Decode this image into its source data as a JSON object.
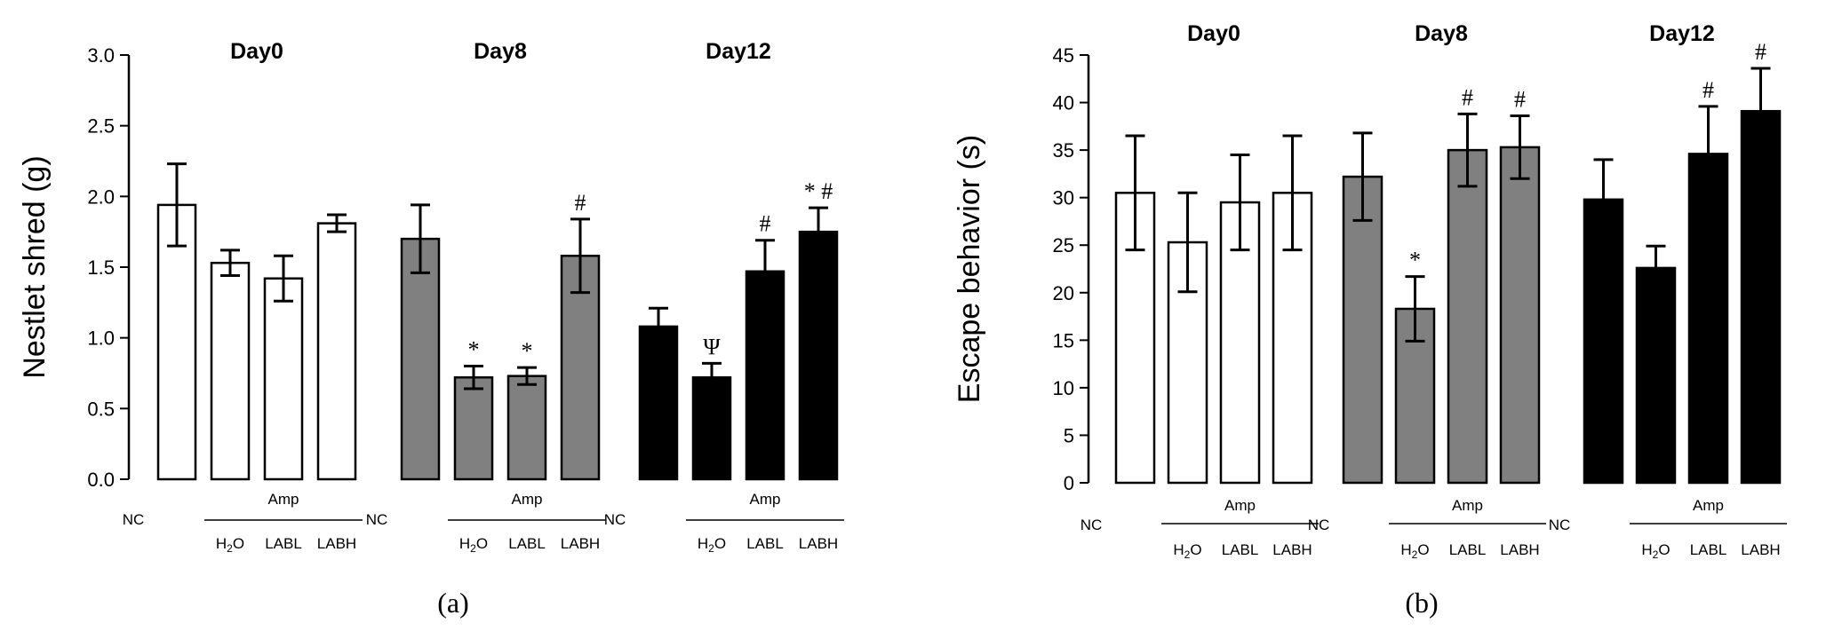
{
  "chart_data": [
    {
      "type": "bar",
      "panel_label": "(a)",
      "ylabel": "Nestlet shred (g)",
      "ylim": [
        0,
        3.0
      ],
      "yticks": [
        "0.0",
        "0.5",
        "1.0",
        "1.5",
        "2.0",
        "2.5",
        "3.0"
      ],
      "group_titles": [
        "Day0",
        "Day8",
        "Day12"
      ],
      "group_fill": [
        "#ffffff",
        "#808080",
        "#000000"
      ],
      "category_labels": {
        "nc": "NC",
        "amp": "Amp",
        "h2o_main": "H",
        "h2o_sub": "2",
        "h2o_tail": "O",
        "labl": "LABL",
        "labh": "LABH"
      },
      "groups": [
        {
          "bars": [
            {
              "category": "NC",
              "value": 1.94,
              "error": 0.29,
              "annotation": ""
            },
            {
              "category": "H2O",
              "value": 1.53,
              "error": 0.09,
              "annotation": ""
            },
            {
              "category": "LABL",
              "value": 1.42,
              "error": 0.16,
              "annotation": ""
            },
            {
              "category": "LABH",
              "value": 1.81,
              "error": 0.06,
              "annotation": ""
            }
          ]
        },
        {
          "bars": [
            {
              "category": "NC",
              "value": 1.7,
              "error": 0.24,
              "annotation": ""
            },
            {
              "category": "H2O",
              "value": 0.72,
              "error": 0.08,
              "annotation": "*"
            },
            {
              "category": "LABL",
              "value": 0.73,
              "error": 0.06,
              "annotation": "*"
            },
            {
              "category": "LABH",
              "value": 1.58,
              "error": 0.26,
              "annotation": "#"
            }
          ]
        },
        {
          "bars": [
            {
              "category": "NC",
              "value": 1.08,
              "error": 0.13,
              "annotation": ""
            },
            {
              "category": "H2O",
              "value": 0.72,
              "error": 0.1,
              "annotation": "Ψ"
            },
            {
              "category": "LABL",
              "value": 1.47,
              "error": 0.22,
              "annotation": "#"
            },
            {
              "category": "LABH",
              "value": 1.75,
              "error": 0.17,
              "annotation": "* #"
            }
          ]
        }
      ]
    },
    {
      "type": "bar",
      "panel_label": "(b)",
      "ylabel": "Escape behavior (s)",
      "ylim": [
        0,
        45
      ],
      "yticks": [
        "0",
        "5",
        "10",
        "15",
        "20",
        "25",
        "30",
        "35",
        "40",
        "45"
      ],
      "group_titles": [
        "Day0",
        "Day8",
        "Day12"
      ],
      "group_fill": [
        "#ffffff",
        "#808080",
        "#000000"
      ],
      "category_labels": {
        "nc": "NC",
        "amp": "Amp",
        "h2o_main": "H",
        "h2o_sub": "2",
        "h2o_tail": "O",
        "labl": "LABL",
        "labh": "LABH"
      },
      "groups": [
        {
          "bars": [
            {
              "category": "NC",
              "value": 30.5,
              "error": 6.0,
              "annotation": ""
            },
            {
              "category": "H2O",
              "value": 25.3,
              "error": 5.2,
              "annotation": ""
            },
            {
              "category": "LABL",
              "value": 29.5,
              "error": 5.0,
              "annotation": ""
            },
            {
              "category": "LABH",
              "value": 30.5,
              "error": 6.0,
              "annotation": ""
            }
          ]
        },
        {
          "bars": [
            {
              "category": "NC",
              "value": 32.2,
              "error": 4.6,
              "annotation": ""
            },
            {
              "category": "H2O",
              "value": 18.3,
              "error": 3.4,
              "annotation": "*"
            },
            {
              "category": "LABL",
              "value": 35.0,
              "error": 3.8,
              "annotation": "#"
            },
            {
              "category": "LABH",
              "value": 35.3,
              "error": 3.3,
              "annotation": "#"
            }
          ]
        },
        {
          "bars": [
            {
              "category": "NC",
              "value": 29.8,
              "error": 4.2,
              "annotation": ""
            },
            {
              "category": "H2O",
              "value": 22.6,
              "error": 2.3,
              "annotation": ""
            },
            {
              "category": "LABL",
              "value": 34.6,
              "error": 5.0,
              "annotation": "#"
            },
            {
              "category": "LABH",
              "value": 39.1,
              "error": 4.5,
              "annotation": "#"
            }
          ]
        }
      ]
    }
  ]
}
